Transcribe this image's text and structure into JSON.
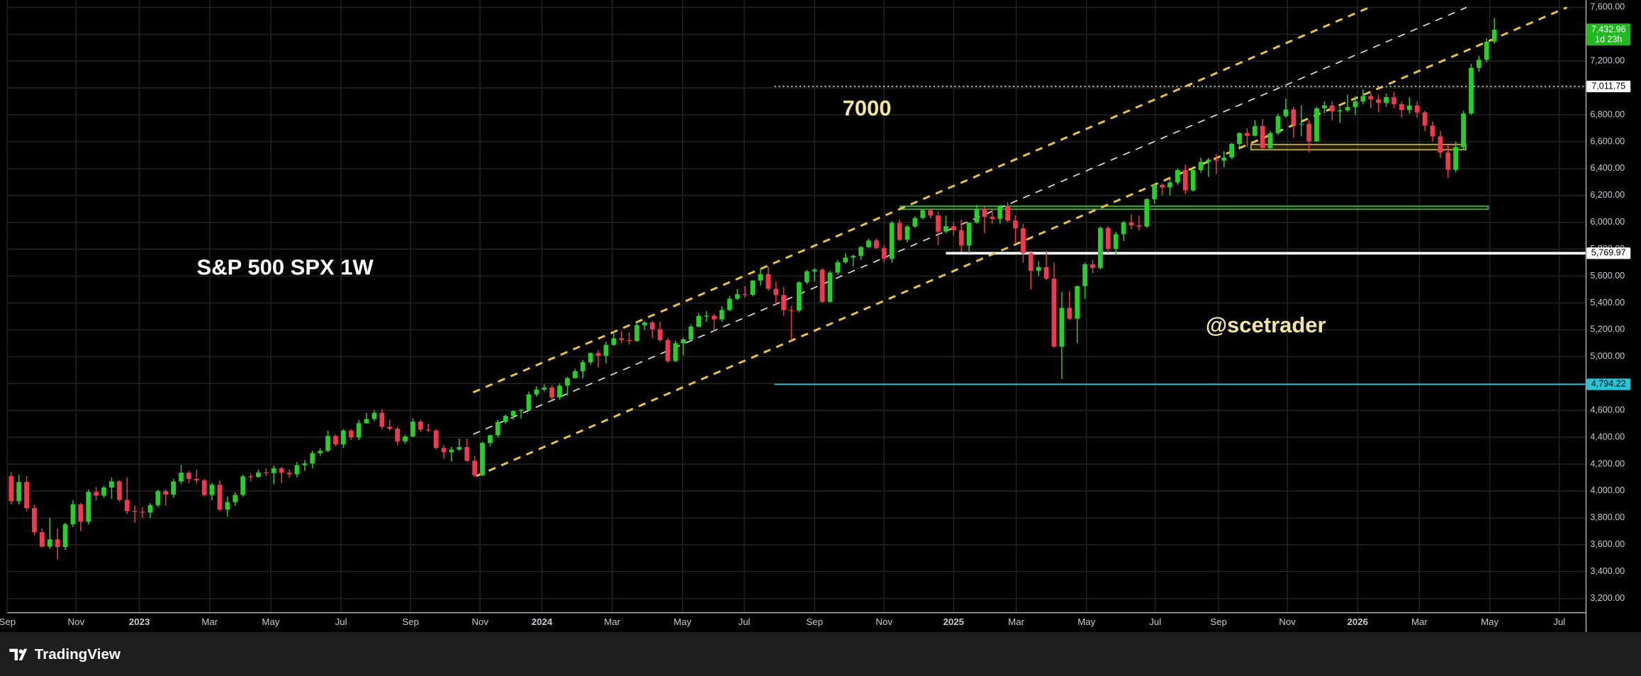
{
  "chart_data": {
    "type": "candlestick",
    "title": "S&P 500 SPX 1W",
    "up_color": "#27d027",
    "down_color": "#f0394f",
    "grid": true,
    "xlim": [
      -0.5,
      203.8
    ],
    "ylim": [
      3098,
      7655
    ],
    "xticks": [
      {
        "value": -0.5,
        "label": "Sep"
      },
      {
        "value": 8.4,
        "label": "Nov"
      },
      {
        "value": 16.6,
        "label": "2023"
      },
      {
        "value": 25.7,
        "label": "Mar"
      },
      {
        "value": 33.6,
        "label": "May"
      },
      {
        "value": 42.7,
        "label": "Jul"
      },
      {
        "value": 51.7,
        "label": "Sep"
      },
      {
        "value": 60.7,
        "label": "Nov"
      },
      {
        "value": 68.7,
        "label": "2024"
      },
      {
        "value": 77.8,
        "label": "Mar"
      },
      {
        "value": 86.9,
        "label": "May"
      },
      {
        "value": 94.9,
        "label": "Jul"
      },
      {
        "value": 104.0,
        "label": "Sep"
      },
      {
        "value": 113.0,
        "label": "Nov"
      },
      {
        "value": 122.0,
        "label": "2025"
      },
      {
        "value": 130.1,
        "label": "Mar"
      },
      {
        "value": 139.2,
        "label": "May"
      },
      {
        "value": 148.1,
        "label": "Jul"
      },
      {
        "value": 156.3,
        "label": "Sep"
      },
      {
        "value": 165.2,
        "label": "Nov"
      },
      {
        "value": 174.3,
        "label": "2026"
      },
      {
        "value": 182.3,
        "label": "Mar"
      },
      {
        "value": 191.4,
        "label": "May"
      },
      {
        "value": 200.4,
        "label": "Jul"
      }
    ],
    "yticks": [
      {
        "value": 3200,
        "label": "3,200.00"
      },
      {
        "value": 3400,
        "label": "3,400.00"
      },
      {
        "value": 3600,
        "label": "3,600.00"
      },
      {
        "value": 3800,
        "label": "3,800.00"
      },
      {
        "value": 4000,
        "label": "4,000.00"
      },
      {
        "value": 4200,
        "label": "4,200.00"
      },
      {
        "value": 4400,
        "label": "4,400.00"
      },
      {
        "value": 4600,
        "label": "4,600.00"
      },
      {
        "value": 4800,
        "label": "4,800.00"
      },
      {
        "value": 5000,
        "label": "5,000.00"
      },
      {
        "value": 5200,
        "label": "5,200.00"
      },
      {
        "value": 5400,
        "label": "5,400.00"
      },
      {
        "value": 5600,
        "label": "5,600.00"
      },
      {
        "value": 5800,
        "label": "5,800.00"
      },
      {
        "value": 6000,
        "label": "6,000.00"
      },
      {
        "value": 6200,
        "label": "6,200.00"
      },
      {
        "value": 6400,
        "label": "6,400.00"
      },
      {
        "value": 6600,
        "label": "6,600.00"
      },
      {
        "value": 6800,
        "label": "6,800.00"
      },
      {
        "value": 7000,
        "label": "7,000.00"
      },
      {
        "value": 7200,
        "label": "7,200.00"
      },
      {
        "value": 7400,
        "label": "7,400.00"
      },
      {
        "value": 7600,
        "label": "7,600.00"
      }
    ],
    "candles": [
      [
        4110,
        4140,
        3900,
        3924
      ],
      [
        3924,
        4120,
        3900,
        4067
      ],
      [
        4067,
        4110,
        3850,
        3873
      ],
      [
        3873,
        3900,
        3670,
        3693
      ],
      [
        3693,
        3720,
        3580,
        3586
      ],
      [
        3586,
        3800,
        3570,
        3640
      ],
      [
        3640,
        3720,
        3492,
        3583
      ],
      [
        3583,
        3765,
        3560,
        3752
      ],
      [
        3752,
        3930,
        3730,
        3901
      ],
      [
        3901,
        3910,
        3700,
        3771
      ],
      [
        3771,
        4010,
        3750,
        3993
      ],
      [
        3993,
        4030,
        3930,
        3965
      ],
      [
        3965,
        4040,
        3950,
        4026
      ],
      [
        4026,
        4100,
        3940,
        4072
      ],
      [
        4072,
        4080,
        3920,
        3934
      ],
      [
        3934,
        4100,
        3830,
        3852
      ],
      [
        3852,
        3890,
        3765,
        3845
      ],
      [
        3845,
        3880,
        3800,
        3840
      ],
      [
        3840,
        3910,
        3800,
        3895
      ],
      [
        3895,
        4010,
        3880,
        3999
      ],
      [
        3999,
        4010,
        3890,
        3973
      ],
      [
        3973,
        4090,
        3950,
        4071
      ],
      [
        4071,
        4195,
        4050,
        4136
      ],
      [
        4136,
        4150,
        4060,
        4090
      ],
      [
        4090,
        4160,
        4050,
        4079
      ],
      [
        4079,
        4090,
        3960,
        3970
      ],
      [
        3970,
        4060,
        3930,
        4046
      ],
      [
        4046,
        4080,
        3850,
        3862
      ],
      [
        3862,
        3960,
        3810,
        3917
      ],
      [
        3917,
        3990,
        3890,
        3971
      ],
      [
        3971,
        4120,
        3960,
        4109
      ],
      [
        4109,
        4130,
        4070,
        4105
      ],
      [
        4105,
        4160,
        4100,
        4138
      ],
      [
        4138,
        4170,
        4110,
        4133
      ],
      [
        4133,
        4190,
        4050,
        4169
      ],
      [
        4169,
        4180,
        4060,
        4136
      ],
      [
        4136,
        4160,
        4100,
        4124
      ],
      [
        4124,
        4215,
        4100,
        4192
      ],
      [
        4192,
        4230,
        4150,
        4205
      ],
      [
        4205,
        4300,
        4170,
        4282
      ],
      [
        4282,
        4320,
        4260,
        4299
      ],
      [
        4299,
        4450,
        4290,
        4410
      ],
      [
        4410,
        4420,
        4330,
        4348
      ],
      [
        4348,
        4460,
        4320,
        4450
      ],
      [
        4450,
        4460,
        4380,
        4399
      ],
      [
        4399,
        4530,
        4380,
        4505
      ],
      [
        4505,
        4580,
        4500,
        4536
      ],
      [
        4536,
        4600,
        4520,
        4582
      ],
      [
        4582,
        4610,
        4460,
        4478
      ],
      [
        4478,
        4530,
        4450,
        4464
      ],
      [
        4464,
        4480,
        4340,
        4370
      ],
      [
        4370,
        4420,
        4350,
        4406
      ],
      [
        4406,
        4540,
        4400,
        4516
      ],
      [
        4516,
        4530,
        4440,
        4457
      ],
      [
        4457,
        4500,
        4440,
        4450
      ],
      [
        4450,
        4460,
        4310,
        4320
      ],
      [
        4320,
        4340,
        4240,
        4288
      ],
      [
        4288,
        4330,
        4220,
        4308
      ],
      [
        4308,
        4390,
        4300,
        4327
      ],
      [
        4327,
        4390,
        4220,
        4224
      ],
      [
        4224,
        4260,
        4103,
        4117
      ],
      [
        4117,
        4370,
        4110,
        4358
      ],
      [
        4358,
        4420,
        4330,
        4415
      ],
      [
        4415,
        4530,
        4400,
        4514
      ],
      [
        4514,
        4570,
        4500,
        4559
      ],
      [
        4559,
        4600,
        4530,
        4595
      ],
      [
        4595,
        4610,
        4540,
        4604
      ],
      [
        4604,
        4740,
        4600,
        4719
      ],
      [
        4719,
        4780,
        4700,
        4755
      ],
      [
        4755,
        4795,
        4740,
        4770
      ],
      [
        4770,
        4790,
        4680,
        4697
      ],
      [
        4697,
        4800,
        4680,
        4784
      ],
      [
        4784,
        4850,
        4710,
        4840
      ],
      [
        4840,
        4910,
        4840,
        4891
      ],
      [
        4891,
        4975,
        4840,
        4959
      ],
      [
        4959,
        5030,
        4940,
        5027
      ],
      [
        5027,
        5050,
        4920,
        5006
      ],
      [
        5006,
        5110,
        4950,
        5088
      ],
      [
        5088,
        5190,
        5080,
        5137
      ],
      [
        5137,
        5190,
        5100,
        5124
      ],
      [
        5124,
        5180,
        5090,
        5117
      ],
      [
        5117,
        5260,
        5110,
        5234
      ],
      [
        5234,
        5265,
        5200,
        5254
      ],
      [
        5254,
        5265,
        5140,
        5204
      ],
      [
        5204,
        5260,
        5110,
        5123
      ],
      [
        5123,
        5140,
        4953,
        4967
      ],
      [
        4967,
        5120,
        4960,
        5100
      ],
      [
        5100,
        5140,
        5010,
        5128
      ],
      [
        5128,
        5240,
        5120,
        5223
      ],
      [
        5223,
        5325,
        5220,
        5303
      ],
      [
        5303,
        5340,
        5260,
        5305
      ],
      [
        5305,
        5320,
        5190,
        5278
      ],
      [
        5278,
        5375,
        5260,
        5347
      ],
      [
        5347,
        5450,
        5340,
        5431
      ],
      [
        5431,
        5505,
        5420,
        5465
      ],
      [
        5465,
        5525,
        5440,
        5460
      ],
      [
        5460,
        5570,
        5450,
        5567
      ],
      [
        5567,
        5655,
        5530,
        5615
      ],
      [
        5615,
        5670,
        5490,
        5505
      ],
      [
        5505,
        5560,
        5390,
        5459
      ],
      [
        5459,
        5520,
        5300,
        5346
      ],
      [
        5346,
        5380,
        5120,
        5344
      ],
      [
        5344,
        5560,
        5330,
        5554
      ],
      [
        5554,
        5645,
        5540,
        5635
      ],
      [
        5635,
        5660,
        5560,
        5648
      ],
      [
        5648,
        5660,
        5400,
        5408
      ],
      [
        5408,
        5640,
        5400,
        5626
      ],
      [
        5626,
        5720,
        5610,
        5703
      ],
      [
        5703,
        5770,
        5690,
        5738
      ],
      [
        5738,
        5760,
        5670,
        5751
      ],
      [
        5751,
        5825,
        5720,
        5815
      ],
      [
        5815,
        5880,
        5810,
        5865
      ],
      [
        5865,
        5880,
        5800,
        5808
      ],
      [
        5808,
        5830,
        5700,
        5729
      ],
      [
        5729,
        6010,
        5700,
        5996
      ],
      [
        5996,
        6020,
        5860,
        5870
      ],
      [
        5870,
        5980,
        5850,
        5969
      ],
      [
        5969,
        6045,
        5960,
        6032
      ],
      [
        6032,
        6100,
        6020,
        6090
      ],
      [
        6090,
        6100,
        6030,
        6051
      ],
      [
        6051,
        6080,
        5830,
        5931
      ],
      [
        5931,
        6050,
        5920,
        5971
      ],
      [
        5971,
        6000,
        5900,
        5942
      ],
      [
        5942,
        6020,
        5780,
        5827
      ],
      [
        5827,
        6000,
        5770,
        5997
      ],
      [
        5997,
        6130,
        5990,
        6101
      ],
      [
        6101,
        6120,
        5920,
        6041
      ],
      [
        6041,
        6100,
        5990,
        6026
      ],
      [
        6026,
        6130,
        5990,
        6115
      ],
      [
        6115,
        6150,
        6000,
        6013
      ],
      [
        6013,
        6050,
        5840,
        5955
      ],
      [
        5955,
        5990,
        5700,
        5770
      ],
      [
        5770,
        5790,
        5500,
        5639
      ],
      [
        5639,
        5710,
        5600,
        5667
      ],
      [
        5667,
        5790,
        5570,
        5581
      ],
      [
        5581,
        5700,
        5069,
        5074
      ],
      [
        5074,
        5481,
        4835,
        5363
      ],
      [
        5363,
        5490,
        5270,
        5283
      ],
      [
        5283,
        5530,
        5100,
        5525
      ],
      [
        5525,
        5700,
        5430,
        5687
      ],
      [
        5687,
        5720,
        5620,
        5660
      ],
      [
        5660,
        5970,
        5650,
        5958
      ],
      [
        5958,
        5970,
        5770,
        5803
      ],
      [
        5803,
        5930,
        5760,
        5912
      ],
      [
        5912,
        6010,
        5860,
        6000
      ],
      [
        6000,
        6060,
        5950,
        5977
      ],
      [
        5977,
        6050,
        5940,
        5968
      ],
      [
        5968,
        6180,
        5960,
        6173
      ],
      [
        6173,
        6285,
        6140,
        6279
      ],
      [
        6279,
        6290,
        6200,
        6260
      ],
      [
        6260,
        6320,
        6200,
        6297
      ],
      [
        6297,
        6400,
        6280,
        6389
      ],
      [
        6389,
        6430,
        6210,
        6238
      ],
      [
        6238,
        6400,
        6230,
        6389
      ],
      [
        6389,
        6480,
        6370,
        6450
      ],
      [
        6450,
        6480,
        6340,
        6467
      ],
      [
        6467,
        6510,
        6360,
        6460
      ],
      [
        6460,
        6530,
        6410,
        6482
      ],
      [
        6482,
        6590,
        6470,
        6584
      ],
      [
        6584,
        6670,
        6560,
        6664
      ],
      [
        6664,
        6700,
        6560,
        6644
      ],
      [
        6644,
        6760,
        6640,
        6716
      ],
      [
        6716,
        6770,
        6550,
        6553
      ],
      [
        6553,
        6680,
        6540,
        6664
      ],
      [
        6664,
        6810,
        6650,
        6791
      ],
      [
        6791,
        6920,
        6780,
        6840
      ],
      [
        6840,
        6860,
        6630,
        6728
      ],
      [
        6728,
        6870,
        6640,
        6734
      ],
      [
        6734,
        6760,
        6520,
        6603
      ],
      [
        6603,
        6860,
        6600,
        6849
      ],
      [
        6849,
        6900,
        6810,
        6870
      ],
      [
        6870,
        6900,
        6760,
        6827
      ],
      [
        6827,
        6860,
        6740,
        6834
      ],
      [
        6834,
        6950,
        6820,
        6858
      ],
      [
        6858,
        6940,
        6800,
        6900
      ],
      [
        6900,
        6990,
        6880,
        6940
      ],
      [
        6940,
        6960,
        6850,
        6915
      ],
      [
        6915,
        6950,
        6820,
        6890
      ],
      [
        6890,
        6960,
        6860,
        6932
      ],
      [
        6932,
        6970,
        6850,
        6880
      ],
      [
        6880,
        6900,
        6780,
        6836
      ],
      [
        6836,
        6930,
        6810,
        6870
      ],
      [
        6870,
        6900,
        6780,
        6818
      ],
      [
        6818,
        6830,
        6680,
        6720
      ],
      [
        6720,
        6750,
        6600,
        6640
      ],
      [
        6640,
        6680,
        6480,
        6520
      ],
      [
        6520,
        6580,
        6330,
        6390
      ],
      [
        6390,
        6600,
        6370,
        6560
      ],
      [
        6560,
        6830,
        6540,
        6810
      ],
      [
        6810,
        7180,
        6800,
        7150
      ],
      [
        7150,
        7240,
        7120,
        7210
      ],
      [
        7210,
        7370,
        7190,
        7345
      ],
      [
        7345,
        7520,
        7330,
        7432.96
      ]
    ],
    "trendlines": [
      {
        "x": [
          59.8,
          175.8
        ],
        "y": [
          4734,
          7600
        ],
        "color": "#e8c53a",
        "dash": "dashed"
      },
      {
        "x": [
          59.8,
          188.4
        ],
        "y": [
          4422,
          7600
        ],
        "color": "#e6e6e6",
        "dash": "dashed"
      },
      {
        "x": [
          60.2,
          201.4
        ],
        "y": [
          4111,
          7600
        ],
        "color": "#e8c53a",
        "dash": "dashed"
      }
    ],
    "zones": [
      {
        "x": [
          115.1,
          191.2
        ],
        "y": [
          6097,
          6120
        ],
        "color": "#3fae3f"
      },
      {
        "x": [
          160.5,
          188.3
        ],
        "y": [
          6540,
          6580
        ],
        "color": "#c9ac37"
      }
    ],
    "hlines": [
      {
        "value": 7011.75,
        "label": "7,011.75",
        "color": "#ffffff",
        "style": "dotted",
        "from": 98.8
      },
      {
        "value": 5769.97,
        "label": "5,769.97",
        "color": "#ffffff",
        "style": "thick",
        "from": 121.0
      },
      {
        "value": 4794.22,
        "label": "4,794.22",
        "color": "#26c6da",
        "style": "solid",
        "from": 98.8
      }
    ],
    "last": {
      "value": 7432.96,
      "label": "7,432.96",
      "countdown": "1d 23h",
      "color": "#22b822"
    },
    "annotations": [
      {
        "text": "7000",
        "color": "#f4e4a1"
      },
      {
        "text": "@scetrader",
        "color": "#f4e4a1"
      }
    ]
  },
  "footer": {
    "brand": "TradingView"
  }
}
